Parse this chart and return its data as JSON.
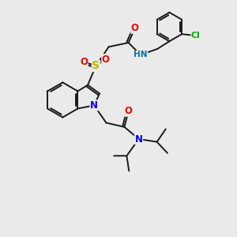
{
  "bg_color": "#eaeaea",
  "bond_color": "#1a1a1a",
  "bond_width": 1.4,
  "atom_colors": {
    "N": "#0000ee",
    "O": "#ee0000",
    "S": "#bbbb00",
    "Cl": "#00aa00",
    "H_on_N": "#007799"
  },
  "font_size_atom": 8.5,
  "font_size_small": 7.5
}
